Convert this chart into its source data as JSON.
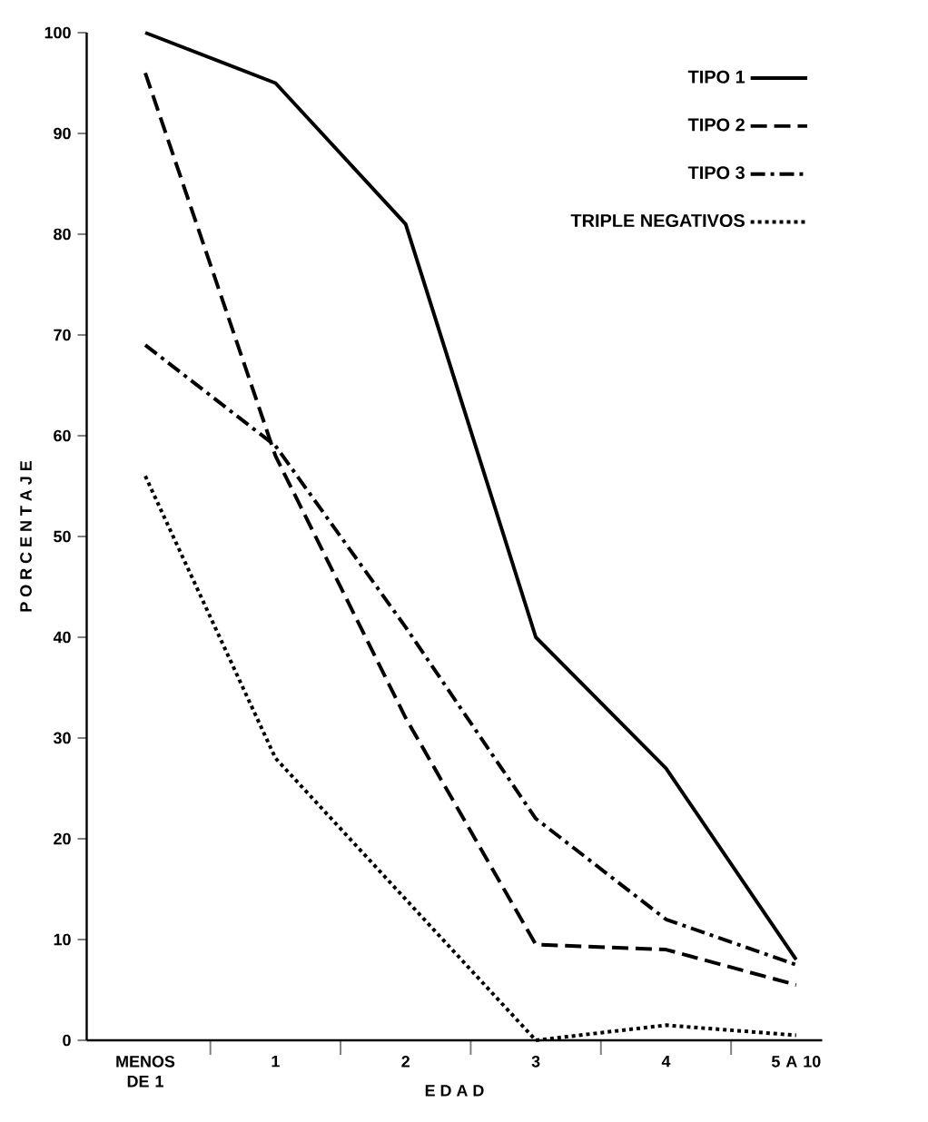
{
  "chart_data": {
    "type": "line",
    "xlabel": "E D A D",
    "ylabel": "P O R C E N T A J E",
    "categories": [
      "MENOS DE 1",
      "1",
      "2",
      "3",
      "4",
      "5 A 10"
    ],
    "series": [
      {
        "name": "TIPO 1",
        "color": "#000000",
        "line_style": "solid",
        "values": [
          100,
          95,
          81,
          40,
          27,
          8
        ]
      },
      {
        "name": "TIPO 2",
        "color": "#000000",
        "line_style": "dashed",
        "values": [
          96,
          58,
          32,
          9.5,
          9,
          5.5
        ]
      },
      {
        "name": "TIPO 3",
        "color": "#000000",
        "line_style": "dashdot",
        "values": [
          69,
          59,
          41,
          22,
          12,
          7.5
        ]
      },
      {
        "name": "TRIPLE NEGATIVOS",
        "color": "#000000",
        "line_style": "dotted",
        "values": [
          56,
          28,
          14,
          0,
          1.5,
          0.5
        ]
      }
    ],
    "ylim": [
      0,
      100
    ],
    "yticks": [
      0,
      10,
      20,
      30,
      40,
      50,
      60,
      70,
      80,
      90,
      100
    ],
    "grid": false,
    "legend": "top right",
    "marker": "none"
  }
}
